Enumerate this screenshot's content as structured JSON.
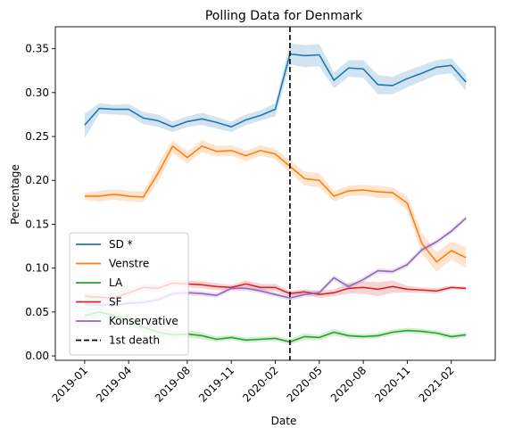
{
  "chart_data": {
    "type": "line",
    "title": "Polling Data for Denmark",
    "xlabel": "Date",
    "ylabel": "Percentage",
    "x_ticks": [
      "2019-01",
      "2019-04",
      "2019-08",
      "2019-11",
      "2020-02",
      "2020-05",
      "2020-08",
      "2020-11",
      "2021-02"
    ],
    "y_ticks": [
      "0.00",
      "0.05",
      "0.10",
      "0.15",
      "0.20",
      "0.25",
      "0.30",
      "0.35"
    ],
    "ylim": [
      -0.005,
      0.375
    ],
    "xlim_months": [
      "2018-11",
      "2021-05"
    ],
    "legend_position": "lower-left",
    "x": [
      "2019-01",
      "2019-02",
      "2019-03",
      "2019-04",
      "2019-05",
      "2019-06",
      "2019-07",
      "2019-08",
      "2019-09",
      "2019-10",
      "2019-11",
      "2019-12",
      "2020-01",
      "2020-02",
      "2020-03",
      "2020-04",
      "2020-05",
      "2020-06",
      "2020-07",
      "2020-08",
      "2020-09",
      "2020-10",
      "2020-11",
      "2020-12",
      "2021-01",
      "2021-02",
      "2021-03"
    ],
    "series": [
      {
        "name": "SD *",
        "color": "#1f77b4",
        "values": [
          0.263,
          0.282,
          0.281,
          0.281,
          0.271,
          0.268,
          0.261,
          0.267,
          0.27,
          0.266,
          0.261,
          0.269,
          0.274,
          0.281,
          0.344,
          0.342,
          0.343,
          0.314,
          0.328,
          0.327,
          0.309,
          0.308,
          0.316,
          0.322,
          0.329,
          0.331,
          0.312
        ],
        "lower": [
          0.248,
          0.276,
          0.275,
          0.274,
          0.264,
          0.261,
          0.255,
          0.261,
          0.263,
          0.259,
          0.255,
          0.263,
          0.268,
          0.273,
          0.332,
          0.329,
          0.33,
          0.305,
          0.318,
          0.317,
          0.298,
          0.298,
          0.306,
          0.313,
          0.32,
          0.322,
          0.302
        ],
        "upper": [
          0.276,
          0.288,
          0.286,
          0.287,
          0.278,
          0.275,
          0.267,
          0.273,
          0.277,
          0.272,
          0.267,
          0.275,
          0.28,
          0.288,
          0.356,
          0.354,
          0.355,
          0.323,
          0.337,
          0.337,
          0.32,
          0.318,
          0.325,
          0.331,
          0.337,
          0.339,
          0.321
        ]
      },
      {
        "name": "Venstre",
        "color": "#ff7f0e",
        "values": [
          0.182,
          0.182,
          0.184,
          0.182,
          0.181,
          0.208,
          0.239,
          0.226,
          0.239,
          0.233,
          0.234,
          0.228,
          0.234,
          0.23,
          0.216,
          0.202,
          0.2,
          0.182,
          0.188,
          0.189,
          0.187,
          0.186,
          0.174,
          0.128,
          0.107,
          0.12,
          0.112
        ],
        "lower": [
          0.178,
          0.176,
          0.178,
          0.176,
          0.175,
          0.198,
          0.231,
          0.219,
          0.232,
          0.227,
          0.228,
          0.222,
          0.228,
          0.224,
          0.209,
          0.194,
          0.192,
          0.176,
          0.182,
          0.183,
          0.18,
          0.18,
          0.166,
          0.116,
          0.096,
          0.11,
          0.1
        ],
        "upper": [
          0.186,
          0.188,
          0.19,
          0.188,
          0.187,
          0.218,
          0.246,
          0.233,
          0.246,
          0.239,
          0.24,
          0.234,
          0.24,
          0.236,
          0.223,
          0.21,
          0.208,
          0.188,
          0.194,
          0.195,
          0.194,
          0.192,
          0.182,
          0.14,
          0.118,
          0.13,
          0.124
        ]
      },
      {
        "name": "LA",
        "color": "#2ca02c",
        "values": [
          0.046,
          0.05,
          0.046,
          0.04,
          0.033,
          0.027,
          0.024,
          0.025,
          0.023,
          0.019,
          0.021,
          0.018,
          0.019,
          0.02,
          0.016,
          0.022,
          0.021,
          0.027,
          0.023,
          0.022,
          0.023,
          0.027,
          0.029,
          0.028,
          0.026,
          0.022,
          0.024
        ],
        "lower": [
          0.038,
          0.044,
          0.04,
          0.034,
          0.028,
          0.022,
          0.019,
          0.021,
          0.019,
          0.016,
          0.018,
          0.015,
          0.016,
          0.017,
          0.013,
          0.018,
          0.018,
          0.023,
          0.02,
          0.019,
          0.02,
          0.024,
          0.026,
          0.025,
          0.023,
          0.019,
          0.021
        ],
        "upper": [
          0.054,
          0.056,
          0.052,
          0.046,
          0.038,
          0.032,
          0.029,
          0.029,
          0.027,
          0.022,
          0.024,
          0.021,
          0.022,
          0.023,
          0.019,
          0.026,
          0.024,
          0.031,
          0.026,
          0.025,
          0.026,
          0.03,
          0.032,
          0.031,
          0.029,
          0.025,
          0.027
        ]
      },
      {
        "name": "SF",
        "color": "#d62728",
        "values": [
          0.068,
          0.067,
          0.066,
          0.072,
          0.078,
          0.077,
          0.083,
          0.082,
          0.081,
          0.079,
          0.078,
          0.082,
          0.078,
          0.078,
          0.071,
          0.073,
          0.07,
          0.072,
          0.077,
          0.078,
          0.076,
          0.079,
          0.076,
          0.075,
          0.074,
          0.078,
          0.077
        ],
        "lower": [
          0.064,
          0.063,
          0.062,
          0.068,
          0.074,
          0.073,
          0.079,
          0.078,
          0.077,
          0.075,
          0.075,
          0.078,
          0.074,
          0.074,
          0.068,
          0.07,
          0.066,
          0.068,
          0.071,
          0.071,
          0.068,
          0.072,
          0.072,
          0.072,
          0.071,
          0.076,
          0.075
        ],
        "upper": [
          0.072,
          0.071,
          0.07,
          0.076,
          0.082,
          0.081,
          0.087,
          0.086,
          0.085,
          0.083,
          0.081,
          0.086,
          0.082,
          0.082,
          0.074,
          0.076,
          0.074,
          0.076,
          0.083,
          0.085,
          0.084,
          0.086,
          0.08,
          0.078,
          0.077,
          0.08,
          0.079
        ]
      },
      {
        "name": "Konservative",
        "color": "#9467bd",
        "values": [
          0.059,
          0.058,
          0.058,
          0.06,
          0.061,
          0.064,
          0.071,
          0.072,
          0.071,
          0.069,
          0.077,
          0.077,
          0.074,
          0.07,
          0.066,
          0.07,
          0.072,
          0.089,
          0.079,
          0.087,
          0.097,
          0.096,
          0.104,
          0.121,
          0.13,
          0.142,
          0.157
        ],
        "lower": [
          0.056,
          0.055,
          0.055,
          0.057,
          0.058,
          0.061,
          0.068,
          0.069,
          0.068,
          0.066,
          0.074,
          0.074,
          0.071,
          0.067,
          0.063,
          0.067,
          0.069,
          0.086,
          0.076,
          0.084,
          0.094,
          0.093,
          0.101,
          0.118,
          0.127,
          0.139,
          0.154
        ],
        "upper": [
          0.062,
          0.061,
          0.061,
          0.063,
          0.064,
          0.067,
          0.074,
          0.075,
          0.074,
          0.072,
          0.08,
          0.08,
          0.077,
          0.073,
          0.069,
          0.073,
          0.075,
          0.092,
          0.082,
          0.09,
          0.1,
          0.099,
          0.107,
          0.124,
          0.133,
          0.145,
          0.16
        ]
      }
    ],
    "annotations": [
      {
        "name": "1st death",
        "type": "vline",
        "x": "2020-03",
        "color": "#000000",
        "style": "dashed"
      }
    ]
  }
}
